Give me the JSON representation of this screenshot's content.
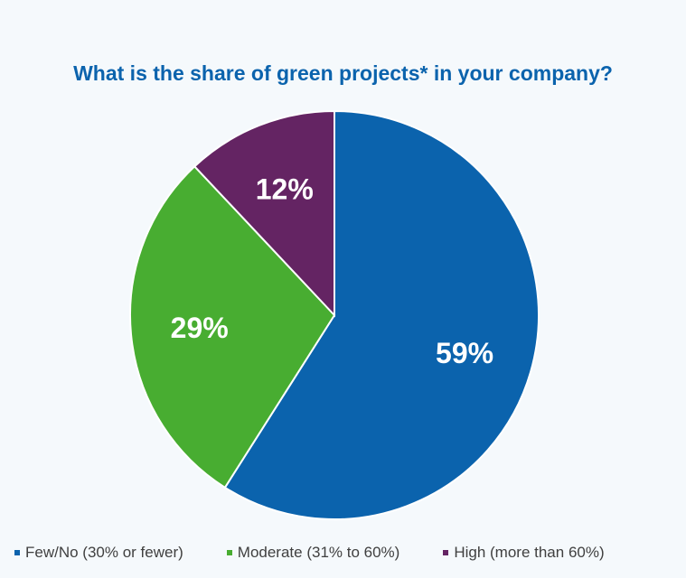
{
  "chart_data": {
    "type": "pie",
    "title": "What is the share of green projects* in your company?",
    "categories": [
      "Few/No (30% or fewer)",
      "Moderate (31% to 60%)",
      "High (more than 60%)"
    ],
    "values": [
      59,
      29,
      12
    ],
    "data_labels": [
      "59%",
      "29%",
      "12%"
    ],
    "colors": [
      "#0b63ad",
      "#48ad31",
      "#642463"
    ],
    "legend_position": "bottom",
    "start_angle": "12 o'clock",
    "direction": "clockwise"
  }
}
